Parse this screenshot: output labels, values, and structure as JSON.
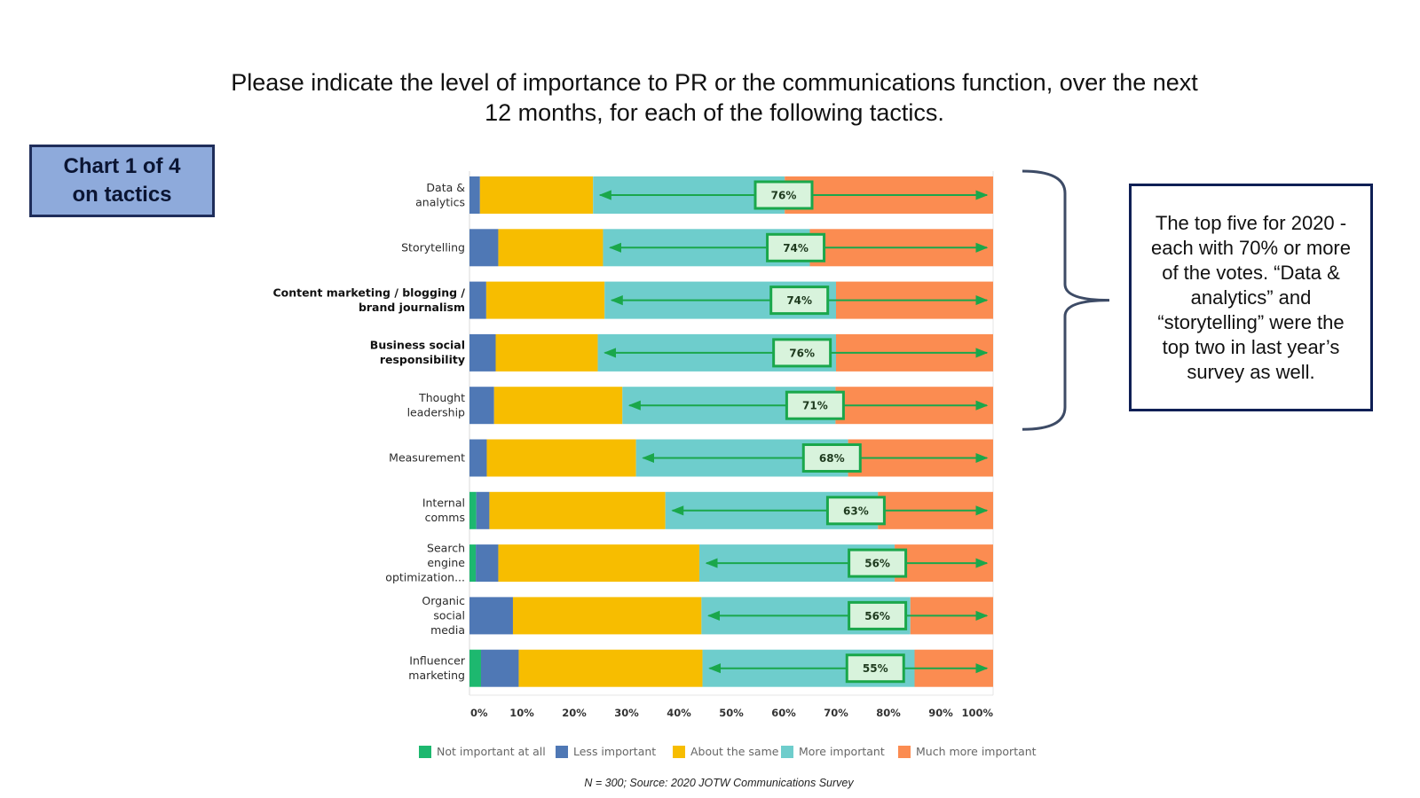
{
  "title": "Please indicate the level of importance to PR or the communications function, over the next 12 months, for each of the following tactics.",
  "badge": "Chart 1 of 4\non tactics",
  "callout": "The top five for 2020 - each with 70% or more of the votes. “Data & analytics” and “storytelling” were the top two in last year’s survey as well.",
  "source": "N = 300; Source: 2020 JOTW Communications Survey",
  "colors": {
    "not_important": "#1db86f",
    "less_important": "#4f78b5",
    "about_same": "#f7bd00",
    "more_important": "#6ecdcc",
    "much_more": "#fb8c51",
    "arrow": "#1aa74b",
    "bracket": "#3d4b66"
  },
  "chart_data": {
    "type": "bar",
    "orientation": "horizontal",
    "stacked": true,
    "title": "Please indicate the level of importance to PR or the communications function, over the next 12 months, for each of the following tactics.",
    "xlim": [
      0,
      100
    ],
    "x_ticks": [
      "0%",
      "10%",
      "20%",
      "30%",
      "40%",
      "50%",
      "60%",
      "70%",
      "80%",
      "90%",
      "100%"
    ],
    "categories": [
      {
        "label": "Data &\nanalytics",
        "bold": false
      },
      {
        "label": "Storytelling",
        "bold": false
      },
      {
        "label": "Content marketing / blogging /\nbrand journalism",
        "bold": true
      },
      {
        "label": "Business social\nresponsibility",
        "bold": true
      },
      {
        "label": "Thought\nleadership",
        "bold": false
      },
      {
        "label": "Measurement",
        "bold": false
      },
      {
        "label": "Internal\ncomms",
        "bold": false
      },
      {
        "label": "Search\nengine\noptimization...",
        "bold": false
      },
      {
        "label": "Organic\nsocial\nmedia",
        "bold": false
      },
      {
        "label": "Influencer\nmarketing",
        "bold": false
      }
    ],
    "series": [
      {
        "name": "Not important at all",
        "key": "not_important",
        "values": [
          0,
          0,
          0,
          0,
          0,
          0,
          1.3,
          1.2,
          0,
          2.2
        ]
      },
      {
        "name": "Less important",
        "key": "less_important",
        "values": [
          2.0,
          5.5,
          3.2,
          5.0,
          4.7,
          3.3,
          2.5,
          4.3,
          8.3,
          7.2
        ]
      },
      {
        "name": "About the same",
        "key": "about_same",
        "values": [
          21.6,
          20.0,
          22.6,
          19.5,
          24.5,
          28.5,
          33.6,
          38.4,
          36.0,
          35.1
        ]
      },
      {
        "name": "More important",
        "key": "more_important",
        "values": [
          36.6,
          39.5,
          44.2,
          45.5,
          40.7,
          40.5,
          40.6,
          37.3,
          39.9,
          40.5
        ]
      },
      {
        "name": "Much more important",
        "key": "much_more",
        "values": [
          39.8,
          35.0,
          30.0,
          30.0,
          30.1,
          27.7,
          22.0,
          18.8,
          15.8,
          15.0
        ]
      }
    ],
    "combined_labels": [
      "76%",
      "74%",
      "74%",
      "76%",
      "71%",
      "68%",
      "63%",
      "56%",
      "56%",
      "55%"
    ],
    "combined_values": [
      76,
      74,
      74,
      76,
      71,
      68,
      63,
      56,
      56,
      55
    ],
    "label_positions": [
      60.0,
      62.3,
      63.0,
      63.5,
      66.0,
      69.2,
      73.8,
      77.9,
      77.9,
      77.5
    ],
    "legend_position": "bottom"
  }
}
